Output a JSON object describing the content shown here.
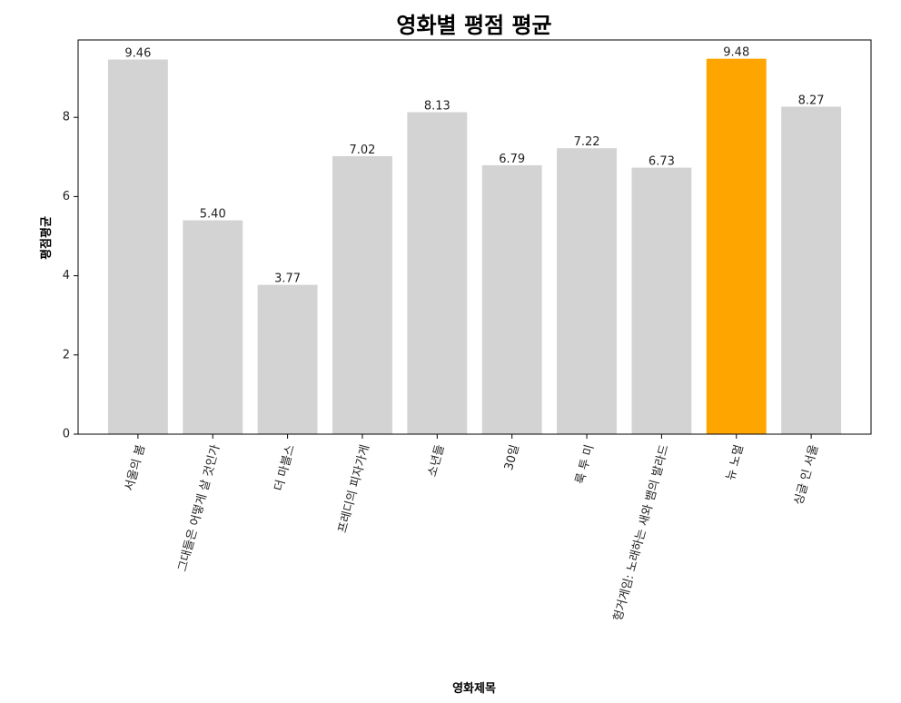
{
  "chart_data": {
    "type": "bar",
    "title": "영화별 평점 평균",
    "xlabel": "영화제목",
    "ylabel": "평점평균",
    "categories": [
      "서울의 봄",
      "그대들은 어떻게 살 것인가",
      "더 마블스",
      "프레디의 피자가게",
      "소년들",
      "30일",
      "룩 투 미",
      "헝거게임: 노래하는 새와 뱀의 발라드",
      "뉴 노멀",
      "싱글 인 서울"
    ],
    "values": [
      9.46,
      5.4,
      3.77,
      7.02,
      8.13,
      6.79,
      7.22,
      6.73,
      9.48,
      8.27
    ],
    "value_labels": [
      "9.46",
      "5.40",
      "3.77",
      "7.02",
      "8.13",
      "6.79",
      "7.22",
      "6.73",
      "9.48",
      "8.27"
    ],
    "ylim": [
      0,
      9.954
    ],
    "yticks": [
      0,
      2,
      4,
      6,
      8
    ],
    "ytick_labels": [
      "0",
      "2",
      "4",
      "6",
      "8"
    ],
    "grid": false,
    "colors": {
      "default_bar": "#d3d3d3",
      "highlight_bar": "#ffa500",
      "axes": "#000000",
      "text": "#222222"
    },
    "highlight_index": 8
  }
}
